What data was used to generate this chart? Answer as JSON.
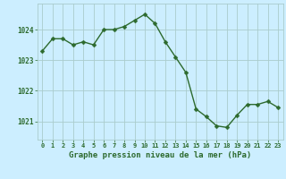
{
  "x": [
    0,
    1,
    2,
    3,
    4,
    5,
    6,
    7,
    8,
    9,
    10,
    11,
    12,
    13,
    14,
    15,
    16,
    17,
    18,
    19,
    20,
    21,
    22,
    23
  ],
  "y": [
    1023.3,
    1023.7,
    1023.7,
    1023.5,
    1023.6,
    1023.5,
    1024.0,
    1024.0,
    1024.1,
    1024.3,
    1024.5,
    1024.2,
    1023.6,
    1023.1,
    1022.6,
    1021.4,
    1021.15,
    1020.85,
    1020.8,
    1021.2,
    1021.55,
    1021.55,
    1021.65,
    1021.45
  ],
  "line_color": "#2d6a2d",
  "marker": "D",
  "markersize": 2.5,
  "linewidth": 1.0,
  "bg_color": "#cceeff",
  "grid_color": "#aacccc",
  "tick_color": "#2d6a2d",
  "label_color": "#2d6a2d",
  "xlabel": "Graphe pression niveau de la mer (hPa)",
  "xlabel_fontsize": 6.5,
  "xlabel_fontweight": "bold",
  "ytick_labels": [
    "1021",
    "1022",
    "1023",
    "1024"
  ],
  "ytick_values": [
    1021,
    1022,
    1023,
    1024
  ],
  "ylim": [
    1020.4,
    1024.85
  ],
  "xlim": [
    -0.5,
    23.5
  ],
  "xtick_fontsize": 5.0,
  "ytick_fontsize": 5.5
}
